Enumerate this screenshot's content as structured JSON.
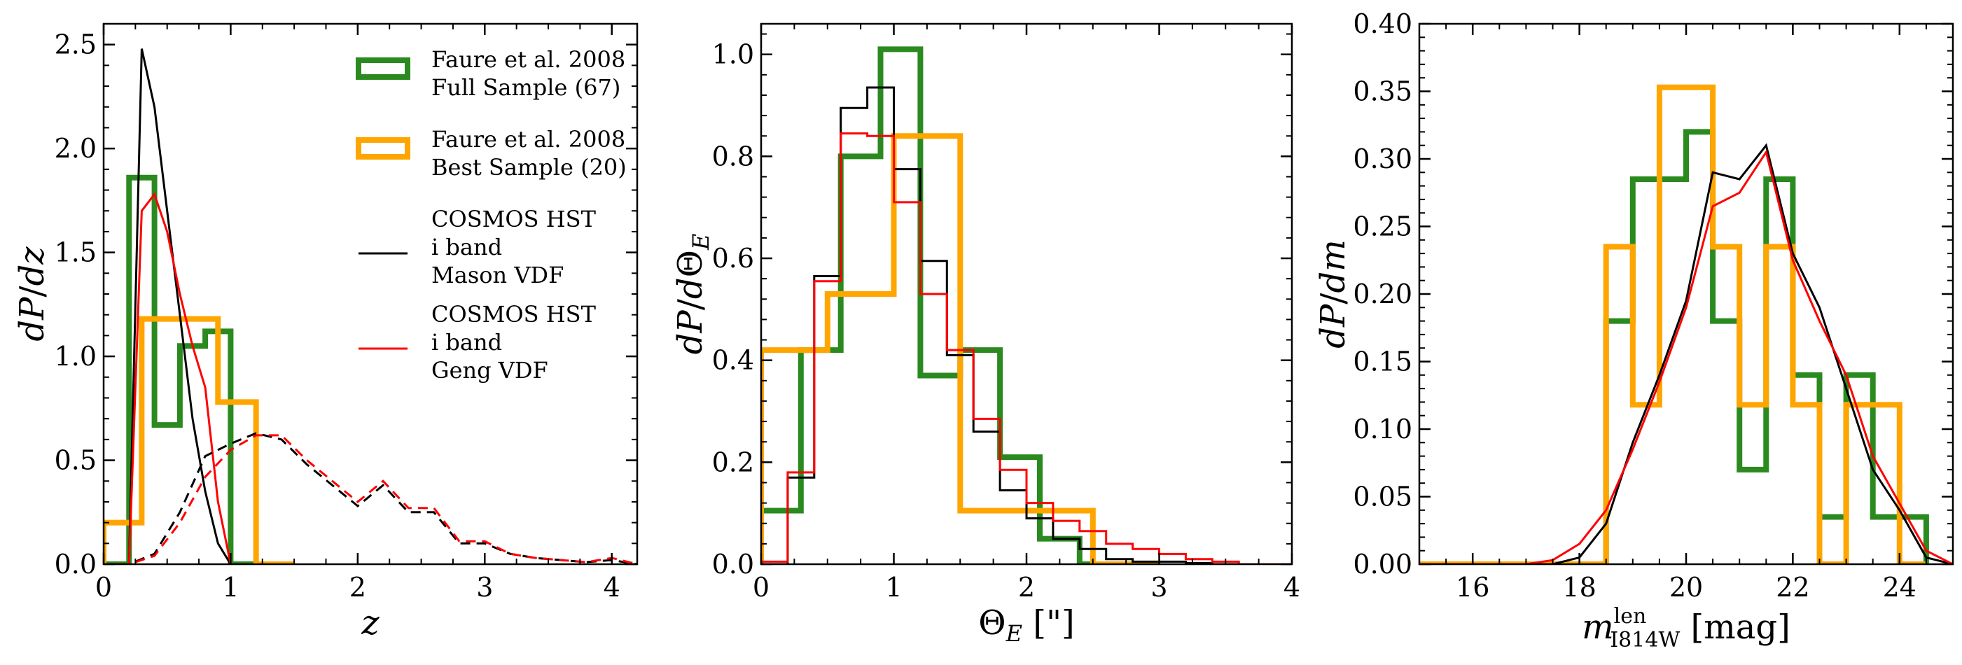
{
  "colors": {
    "full_sample": "#2b8a1f",
    "best_sample": "#ffa500",
    "mason": "#000000",
    "geng": "#ff0000"
  },
  "legend": [
    {
      "lines": [
        "Faure et al. 2008",
        " Full Sample (67)"
      ],
      "color": "#2b8a1f",
      "style": "thick-box"
    },
    {
      "lines": [
        "Faure et al. 2008",
        " Best Sample (20)"
      ],
      "color": "#ffa500",
      "style": "thick-box"
    },
    {
      "lines": [
        "COSMOS HST",
        " i band",
        " Mason VDF"
      ],
      "color": "#000000",
      "style": "line"
    },
    {
      "lines": [
        "COSMOS HST",
        " i band",
        " Geng VDF"
      ],
      "color": "#ff0000",
      "style": "line"
    }
  ],
  "chart_data": [
    {
      "type": "line",
      "xlabel": "z",
      "ylabel": "dP/dz",
      "xlim": [
        0,
        4.2
      ],
      "ylim": [
        0,
        2.6
      ],
      "xticks": [
        0,
        1,
        2,
        3,
        4
      ],
      "yticks": [
        0.0,
        0.5,
        1.0,
        1.5,
        2.0,
        2.5
      ],
      "ytick_labels": [
        "0.0",
        "0.5",
        "1.0",
        "1.5",
        "2.0",
        "2.5"
      ],
      "legend_position": "top-right",
      "series": [
        {
          "name": "Faure et al. 2008 Full Sample (67)",
          "kind": "step-hist",
          "color": "#2b8a1f",
          "edges": [
            0,
            0.2,
            0.4,
            0.6,
            0.8,
            1.0,
            1.2
          ],
          "values": [
            0.0,
            1.86,
            0.67,
            1.05,
            1.12,
            0.0
          ]
        },
        {
          "name": "Faure et al. 2008 Best Sample (20)",
          "kind": "step-hist",
          "color": "#ffa500",
          "edges": [
            0,
            0.3,
            0.9,
            1.2,
            1.5
          ],
          "values": [
            0.2,
            1.18,
            0.78,
            0.0
          ]
        },
        {
          "name": "COSMOS HST i band Mason VDF",
          "kind": "line",
          "color": "#000000",
          "x": [
            0.0,
            0.2,
            0.3,
            0.4,
            0.5,
            0.6,
            0.7,
            0.8,
            0.9,
            1.0
          ],
          "y": [
            0.0,
            0.0,
            2.48,
            2.2,
            1.7,
            1.2,
            0.7,
            0.35,
            0.1,
            0.0
          ]
        },
        {
          "name": "COSMOS HST i band Geng VDF",
          "kind": "line",
          "color": "#ff0000",
          "x": [
            0.0,
            0.2,
            0.3,
            0.4,
            0.5,
            0.6,
            0.7,
            0.8,
            0.9,
            1.0
          ],
          "y": [
            0.0,
            0.0,
            1.7,
            1.78,
            1.6,
            1.3,
            1.05,
            0.85,
            0.3,
            0.0
          ]
        },
        {
          "kind": "dashed-line",
          "color": "#000000",
          "x": [
            0.0,
            0.2,
            0.4,
            0.6,
            0.8,
            1.0,
            1.2,
            1.4,
            1.6,
            1.8,
            2.0,
            2.2,
            2.4,
            2.6,
            2.8,
            3.0,
            3.2,
            3.4,
            3.6,
            3.8,
            4.0,
            4.2
          ],
          "y": [
            0.0,
            0.0,
            0.05,
            0.25,
            0.52,
            0.58,
            0.63,
            0.6,
            0.48,
            0.38,
            0.28,
            0.38,
            0.25,
            0.25,
            0.1,
            0.1,
            0.05,
            0.03,
            0.02,
            0.01,
            0.02,
            0.0
          ]
        },
        {
          "kind": "dashed-line",
          "color": "#ff0000",
          "x": [
            0.0,
            0.2,
            0.4,
            0.6,
            0.8,
            1.0,
            1.2,
            1.4,
            1.6,
            1.8,
            2.0,
            2.2,
            2.4,
            2.6,
            2.8,
            3.0,
            3.2,
            3.4,
            3.6,
            3.8,
            4.0,
            4.2
          ],
          "y": [
            0.0,
            0.0,
            0.04,
            0.2,
            0.42,
            0.55,
            0.62,
            0.62,
            0.5,
            0.4,
            0.3,
            0.4,
            0.27,
            0.27,
            0.11,
            0.11,
            0.05,
            0.03,
            0.02,
            0.01,
            0.03,
            0.0
          ]
        }
      ]
    },
    {
      "type": "line",
      "xlabel": "Θ_E [\"]",
      "ylabel": "dP/dΘ_E",
      "xlim": [
        0,
        4
      ],
      "ylim": [
        0,
        1.06
      ],
      "xticks": [
        0,
        1,
        2,
        3,
        4
      ],
      "yticks": [
        0.0,
        0.2,
        0.4,
        0.6,
        0.8,
        1.0
      ],
      "ytick_labels": [
        "0.0",
        "0.2",
        "0.4",
        "0.6",
        "0.8",
        "1.0"
      ],
      "series": [
        {
          "name": "Faure et al. 2008 Full Sample (67)",
          "kind": "step-hist",
          "color": "#2b8a1f",
          "edges": [
            0,
            0.3,
            0.6,
            0.9,
            1.2,
            1.5,
            1.8,
            2.1,
            2.4,
            2.7
          ],
          "values": [
            0.105,
            0.42,
            0.8,
            1.01,
            0.37,
            0.42,
            0.21,
            0.05,
            0.0
          ]
        },
        {
          "name": "Faure et al. 2008 Best Sample (20)",
          "kind": "step-hist",
          "color": "#ffa500",
          "edges": [
            0,
            0.5,
            1.0,
            1.5,
            2.5,
            3.0
          ],
          "values": [
            0.42,
            0.53,
            0.84,
            0.105,
            0.0
          ]
        },
        {
          "name": "COSMOS HST i band Mason VDF",
          "kind": "step-hist",
          "color": "#000000",
          "edges": [
            0,
            0.2,
            0.4,
            0.6,
            0.8,
            1.0,
            1.2,
            1.4,
            1.6,
            1.8,
            2.0,
            2.2,
            2.4,
            2.6,
            2.8,
            3.0,
            3.2,
            3.4,
            4.0
          ],
          "values": [
            0.0,
            0.17,
            0.565,
            0.895,
            0.935,
            0.775,
            0.595,
            0.41,
            0.26,
            0.145,
            0.09,
            0.05,
            0.03,
            0.01,
            0.005,
            0.005,
            0.002,
            0.0
          ]
        },
        {
          "name": "COSMOS HST i band Geng VDF",
          "kind": "step-hist",
          "color": "#ff0000",
          "edges": [
            0,
            0.2,
            0.4,
            0.6,
            0.8,
            1.0,
            1.2,
            1.4,
            1.6,
            1.8,
            2.0,
            2.2,
            2.4,
            2.6,
            2.8,
            3.0,
            3.2,
            3.4,
            3.6,
            4.0
          ],
          "values": [
            0.005,
            0.18,
            0.555,
            0.845,
            0.84,
            0.71,
            0.53,
            0.42,
            0.285,
            0.185,
            0.12,
            0.085,
            0.065,
            0.04,
            0.03,
            0.02,
            0.01,
            0.005,
            0.0
          ]
        }
      ]
    },
    {
      "type": "line",
      "xlabel": "m_I814W^len [mag]",
      "ylabel": "dP/dm",
      "xlim": [
        15,
        25
      ],
      "ylim": [
        0,
        0.4
      ],
      "xticks": [
        16,
        18,
        20,
        22,
        24
      ],
      "yticks": [
        0.0,
        0.05,
        0.1,
        0.15,
        0.2,
        0.25,
        0.3,
        0.35,
        0.4
      ],
      "ytick_labels": [
        "0.00",
        "0.05",
        "0.10",
        "0.15",
        "0.20",
        "0.25",
        "0.30",
        "0.35",
        "0.40"
      ],
      "series": [
        {
          "name": "Faure et al. 2008 Full Sample (67)",
          "kind": "step-hist",
          "color": "#2b8a1f",
          "edges": [
            18.5,
            19.0,
            19.5,
            20.0,
            20.5,
            21.0,
            21.5,
            22.0,
            22.5,
            23.0,
            23.5,
            24.0,
            24.5
          ],
          "values": [
            0.18,
            0.285,
            0.285,
            0.32,
            0.18,
            0.07,
            0.285,
            0.14,
            0.035,
            0.14,
            0.035,
            0.035
          ]
        },
        {
          "name": "Faure et al. 2008 Best Sample (20)",
          "kind": "step-hist",
          "color": "#ffa500",
          "edges": [
            15,
            18.5,
            19.0,
            19.5,
            20.0,
            20.5,
            21.0,
            21.5,
            22.0,
            22.5,
            23.0,
            23.5,
            24.0,
            24.5
          ],
          "values": [
            0.0,
            0.235,
            0.118,
            0.353,
            0.353,
            0.235,
            0.118,
            0.235,
            0.118,
            0.0,
            0.118,
            0.118,
            0.0
          ]
        },
        {
          "name": "COSMOS HST i band Mason VDF",
          "kind": "line",
          "color": "#000000",
          "x": [
            15.0,
            17.0,
            17.5,
            18.0,
            18.5,
            19.0,
            19.5,
            20.0,
            20.5,
            21.0,
            21.5,
            22.0,
            22.5,
            23.0,
            23.5,
            24.0,
            24.5,
            25.0
          ],
          "y": [
            0.0,
            0.0,
            0.0,
            0.005,
            0.03,
            0.09,
            0.14,
            0.195,
            0.29,
            0.285,
            0.31,
            0.23,
            0.19,
            0.13,
            0.07,
            0.04,
            0.005,
            0.0
          ]
        },
        {
          "name": "COSMOS HST i band Geng VDF",
          "kind": "line",
          "color": "#ff0000",
          "x": [
            15.0,
            17.0,
            17.5,
            18.0,
            18.5,
            19.0,
            19.5,
            20.0,
            20.5,
            21.0,
            21.5,
            22.0,
            22.5,
            23.0,
            23.5,
            24.0,
            24.5,
            25.0
          ],
          "y": [
            0.0,
            0.0,
            0.003,
            0.015,
            0.04,
            0.085,
            0.135,
            0.19,
            0.265,
            0.275,
            0.305,
            0.225,
            0.18,
            0.14,
            0.08,
            0.045,
            0.01,
            0.0
          ]
        }
      ]
    }
  ]
}
